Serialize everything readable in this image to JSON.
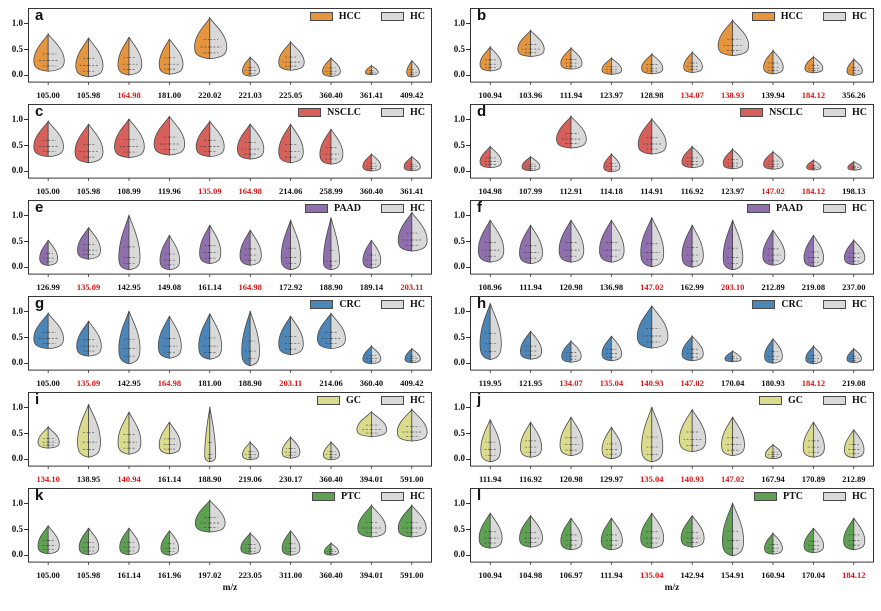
{
  "colors": {
    "hc_fill": "#D9D9D9",
    "outline": "#4A4A4A",
    "box": "#333333",
    "sig_label": "#E11212",
    "label": "#111111"
  },
  "chart_data": {
    "type": "violin",
    "layout": "6 rows x 2 columns of split violin plots; left half = cancer group, right half = healthy control",
    "xlabel": "m/z",
    "yticks": [
      "1.0",
      "0.5",
      "0.0"
    ],
    "ylim": [
      -0.15,
      1.25
    ],
    "legend_hc_label": "HC",
    "violin_format": [
      "mz_label",
      "significant_red",
      "mode_y",
      "top_y",
      "width_left",
      "width_right"
    ],
    "panels": [
      {
        "letter": "a",
        "group": "HCC",
        "color": "#E5953D",
        "violins": [
          [
            "105.00",
            0,
            0.25,
            0.78,
            0.85,
            0.95
          ],
          [
            "105.98",
            0,
            0.15,
            0.7,
            0.75,
            0.85
          ],
          [
            "164.98",
            1,
            0.18,
            0.72,
            0.65,
            0.75
          ],
          [
            "181.00",
            0,
            0.18,
            0.68,
            0.6,
            0.8
          ],
          [
            "220.02",
            0,
            0.52,
            1.1,
            0.9,
            1.0
          ],
          [
            "221.03",
            0,
            0.05,
            0.32,
            0.45,
            0.55
          ],
          [
            "225.05",
            0,
            0.22,
            0.62,
            0.7,
            0.8
          ],
          [
            "360.40",
            0,
            0.04,
            0.3,
            0.5,
            0.55
          ],
          [
            "361.41",
            0,
            0.02,
            0.15,
            0.35,
            0.4
          ],
          [
            "409.42",
            0,
            0.02,
            0.25,
            0.3,
            0.45
          ]
        ]
      },
      {
        "letter": "b",
        "group": "HCC",
        "color": "#E5953D",
        "violins": [
          [
            "100.94",
            0,
            0.18,
            0.52,
            0.6,
            0.65
          ],
          [
            "103.96",
            0,
            0.48,
            0.85,
            0.75,
            0.8
          ],
          [
            "111.94",
            0,
            0.2,
            0.5,
            0.6,
            0.65
          ],
          [
            "123.97",
            0,
            0.07,
            0.3,
            0.55,
            0.6
          ],
          [
            "128.98",
            0,
            0.1,
            0.38,
            0.6,
            0.65
          ],
          [
            "134.07",
            1,
            0.13,
            0.42,
            0.5,
            0.6
          ],
          [
            "138.93",
            1,
            0.55,
            1.05,
            0.85,
            0.95
          ],
          [
            "139.94",
            0,
            0.12,
            0.45,
            0.55,
            0.6
          ],
          [
            "184.12",
            1,
            0.1,
            0.33,
            0.5,
            0.55
          ],
          [
            "356.26",
            0,
            0.05,
            0.28,
            0.4,
            0.5
          ]
        ]
      },
      {
        "letter": "c",
        "group": "NSCLC",
        "color": "#D8605B",
        "violins": [
          [
            "105.00",
            0,
            0.45,
            0.95,
            0.85,
            0.9
          ],
          [
            "105.98",
            0,
            0.35,
            0.9,
            0.8,
            0.85
          ],
          [
            "108.99",
            0,
            0.45,
            1.0,
            0.85,
            0.9
          ],
          [
            "119.96",
            0,
            0.5,
            1.05,
            0.9,
            0.9
          ],
          [
            "135.09",
            1,
            0.45,
            0.95,
            0.8,
            0.85
          ],
          [
            "164.98",
            1,
            0.4,
            0.9,
            0.75,
            0.8
          ],
          [
            "214.06",
            0,
            0.35,
            0.9,
            0.7,
            0.75
          ],
          [
            "258.99",
            0,
            0.3,
            0.8,
            0.65,
            0.7
          ],
          [
            "360.40",
            0,
            0.06,
            0.3,
            0.5,
            0.55
          ],
          [
            "361.41",
            0,
            0.05,
            0.25,
            0.45,
            0.5
          ]
        ]
      },
      {
        "letter": "d",
        "group": "NSCLC",
        "color": "#D8605B",
        "violins": [
          [
            "104.98",
            0,
            0.15,
            0.45,
            0.6,
            0.65
          ],
          [
            "107.99",
            0,
            0.05,
            0.25,
            0.5,
            0.55
          ],
          [
            "112.91",
            0,
            0.6,
            1.05,
            0.85,
            0.9
          ],
          [
            "114.18",
            0,
            0.05,
            0.3,
            0.45,
            0.5
          ],
          [
            "114.91",
            0,
            0.5,
            1.0,
            0.8,
            0.85
          ],
          [
            "116.92",
            0,
            0.15,
            0.45,
            0.6,
            0.65
          ],
          [
            "123.97",
            0,
            0.12,
            0.4,
            0.55,
            0.6
          ],
          [
            "147.02",
            1,
            0.1,
            0.35,
            0.55,
            0.6
          ],
          [
            "184.12",
            1,
            0.04,
            0.18,
            0.4,
            0.45
          ],
          [
            "198.13",
            0,
            0.03,
            0.15,
            0.35,
            0.45
          ]
        ]
      },
      {
        "letter": "e",
        "group": "PAAD",
        "color": "#8F6FAD",
        "violins": [
          [
            "126.99",
            0,
            0.14,
            0.5,
            0.5,
            0.55
          ],
          [
            "135.09",
            1,
            0.3,
            0.75,
            0.65,
            0.7
          ],
          [
            "142.95",
            0,
            0.15,
            1.0,
            0.6,
            0.65
          ],
          [
            "149.08",
            0,
            0.1,
            0.6,
            0.55,
            0.6
          ],
          [
            "161.14",
            0,
            0.25,
            0.8,
            0.6,
            0.65
          ],
          [
            "164.98",
            1,
            0.2,
            0.7,
            0.6,
            0.65
          ],
          [
            "172.92",
            0,
            0.15,
            0.9,
            0.55,
            0.6
          ],
          [
            "188.90",
            0,
            0.08,
            0.95,
            0.45,
            0.5
          ],
          [
            "189.14",
            0,
            0.1,
            0.5,
            0.5,
            0.55
          ],
          [
            "203.11",
            1,
            0.5,
            1.05,
            0.8,
            0.9
          ]
        ]
      },
      {
        "letter": "f",
        "group": "PAAD",
        "color": "#8F6FAD",
        "violins": [
          [
            "108.96",
            0,
            0.3,
            0.9,
            0.7,
            0.8
          ],
          [
            "111.94",
            0,
            0.25,
            0.8,
            0.65,
            0.7
          ],
          [
            "120.98",
            0,
            0.3,
            0.9,
            0.7,
            0.75
          ],
          [
            "136.98",
            0,
            0.3,
            0.9,
            0.7,
            0.75
          ],
          [
            "147.02",
            1,
            0.25,
            0.95,
            0.65,
            0.7
          ],
          [
            "162.99",
            0,
            0.2,
            0.8,
            0.6,
            0.65
          ],
          [
            "203.10",
            1,
            0.15,
            0.9,
            0.55,
            0.6
          ],
          [
            "212.89",
            0,
            0.2,
            0.7,
            0.6,
            0.7
          ],
          [
            "219.08",
            0,
            0.15,
            0.6,
            0.55,
            0.6
          ],
          [
            "237.00",
            0,
            0.15,
            0.5,
            0.55,
            0.65
          ]
        ]
      },
      {
        "letter": "g",
        "group": "CRC",
        "color": "#4C86B8",
        "violins": [
          [
            "105.00",
            0,
            0.45,
            0.95,
            0.85,
            0.9
          ],
          [
            "135.09",
            1,
            0.3,
            0.8,
            0.7,
            0.75
          ],
          [
            "142.95",
            0,
            0.25,
            1.0,
            0.6,
            0.65
          ],
          [
            "164.98",
            1,
            0.3,
            0.9,
            0.65,
            0.7
          ],
          [
            "181.00",
            0,
            0.3,
            0.95,
            0.65,
            0.7
          ],
          [
            "188.90",
            0,
            0.2,
            1.0,
            0.5,
            0.55
          ],
          [
            "203.11",
            1,
            0.35,
            0.9,
            0.7,
            0.75
          ],
          [
            "214.06",
            0,
            0.45,
            0.95,
            0.8,
            0.85
          ],
          [
            "360.40",
            0,
            0.05,
            0.3,
            0.5,
            0.55
          ],
          [
            "409.42",
            0,
            0.05,
            0.25,
            0.4,
            0.5
          ]
        ]
      },
      {
        "letter": "h",
        "group": "CRC",
        "color": "#4C86B8",
        "violins": [
          [
            "119.95",
            0,
            0.35,
            1.15,
            0.6,
            0.65
          ],
          [
            "121.95",
            0,
            0.2,
            0.6,
            0.6,
            0.65
          ],
          [
            "134.07",
            1,
            0.1,
            0.4,
            0.55,
            0.6
          ],
          [
            "135.04",
            1,
            0.15,
            0.5,
            0.55,
            0.6
          ],
          [
            "140.93",
            1,
            0.5,
            1.1,
            0.85,
            0.95
          ],
          [
            "147.02",
            1,
            0.15,
            0.5,
            0.6,
            0.65
          ],
          [
            "170.04",
            0,
            0.05,
            0.2,
            0.45,
            0.5
          ],
          [
            "180.93",
            0,
            0.1,
            0.45,
            0.5,
            0.55
          ],
          [
            "184.12",
            1,
            0.05,
            0.3,
            0.45,
            0.5
          ],
          [
            "219.08",
            0,
            0.05,
            0.25,
            0.4,
            0.45
          ]
        ]
      },
      {
        "letter": "i",
        "group": "GC",
        "color": "#DBDB8D",
        "violins": [
          [
            "134.10",
            1,
            0.3,
            0.6,
            0.6,
            0.65
          ],
          [
            "138.95",
            0,
            0.3,
            1.05,
            0.65,
            0.7
          ],
          [
            "140.94",
            1,
            0.3,
            0.9,
            0.65,
            0.7
          ],
          [
            "161.14",
            0,
            0.25,
            0.7,
            0.6,
            0.65
          ],
          [
            "188.90",
            0,
            0.05,
            1.0,
            0.3,
            0.35
          ],
          [
            "219.06",
            0,
            0.05,
            0.3,
            0.45,
            0.5
          ],
          [
            "230.17",
            0,
            0.1,
            0.4,
            0.5,
            0.55
          ],
          [
            "360.40",
            0,
            0.05,
            0.3,
            0.45,
            0.5
          ],
          [
            "394.01",
            0,
            0.55,
            0.9,
            0.85,
            0.9
          ],
          [
            "591.00",
            0,
            0.5,
            0.95,
            0.85,
            0.9
          ]
        ]
      },
      {
        "letter": "j",
        "group": "GC",
        "color": "#DBDB8D",
        "violins": [
          [
            "111.94",
            0,
            0.15,
            0.75,
            0.55,
            0.6
          ],
          [
            "116.92",
            0,
            0.2,
            0.7,
            0.6,
            0.65
          ],
          [
            "120.98",
            0,
            0.25,
            0.8,
            0.65,
            0.7
          ],
          [
            "129.97",
            0,
            0.15,
            0.6,
            0.55,
            0.6
          ],
          [
            "135.04",
            1,
            0.2,
            1.0,
            0.6,
            0.65
          ],
          [
            "140.93",
            1,
            0.35,
            0.95,
            0.75,
            0.8
          ],
          [
            "147.02",
            1,
            0.25,
            0.8,
            0.65,
            0.7
          ],
          [
            "167.94",
            0,
            0.05,
            0.25,
            0.45,
            0.5
          ],
          [
            "170.89",
            0,
            0.2,
            0.7,
            0.6,
            0.65
          ],
          [
            "212.89",
            0,
            0.15,
            0.55,
            0.55,
            0.6
          ]
        ]
      },
      {
        "letter": "k",
        "group": "PTC",
        "color": "#5EA153",
        "violins": [
          [
            "105.00",
            0,
            0.15,
            0.55,
            0.6,
            0.65
          ],
          [
            "105.98",
            0,
            0.12,
            0.5,
            0.55,
            0.6
          ],
          [
            "161.14",
            0,
            0.12,
            0.5,
            0.55,
            0.6
          ],
          [
            "161.96",
            0,
            0.1,
            0.45,
            0.5,
            0.55
          ],
          [
            "197.02",
            0,
            0.6,
            1.05,
            0.85,
            0.9
          ],
          [
            "223.05",
            0,
            0.1,
            0.4,
            0.55,
            0.6
          ],
          [
            "311.00",
            0,
            0.1,
            0.45,
            0.5,
            0.55
          ],
          [
            "360.40",
            0,
            0.03,
            0.2,
            0.4,
            0.45
          ],
          [
            "394.01",
            0,
            0.5,
            0.95,
            0.8,
            0.85
          ],
          [
            "591.00",
            0,
            0.5,
            0.95,
            0.8,
            0.85
          ]
        ]
      },
      {
        "letter": "l",
        "group": "PTC",
        "color": "#5EA153",
        "violins": [
          [
            "100.94",
            0,
            0.3,
            0.8,
            0.65,
            0.7
          ],
          [
            "104.98",
            0,
            0.3,
            0.75,
            0.65,
            0.7
          ],
          [
            "106.97",
            0,
            0.25,
            0.7,
            0.6,
            0.65
          ],
          [
            "111.94",
            0,
            0.25,
            0.7,
            0.6,
            0.65
          ],
          [
            "135.04",
            1,
            0.3,
            0.8,
            0.65,
            0.7
          ],
          [
            "142.94",
            0,
            0.3,
            0.75,
            0.65,
            0.7
          ],
          [
            "154.91",
            0,
            0.25,
            1.0,
            0.6,
            0.65
          ],
          [
            "160.94",
            0,
            0.1,
            0.4,
            0.5,
            0.55
          ],
          [
            "170.04",
            0,
            0.15,
            0.5,
            0.55,
            0.6
          ],
          [
            "184.12",
            1,
            0.25,
            0.7,
            0.6,
            0.65
          ]
        ]
      }
    ]
  }
}
